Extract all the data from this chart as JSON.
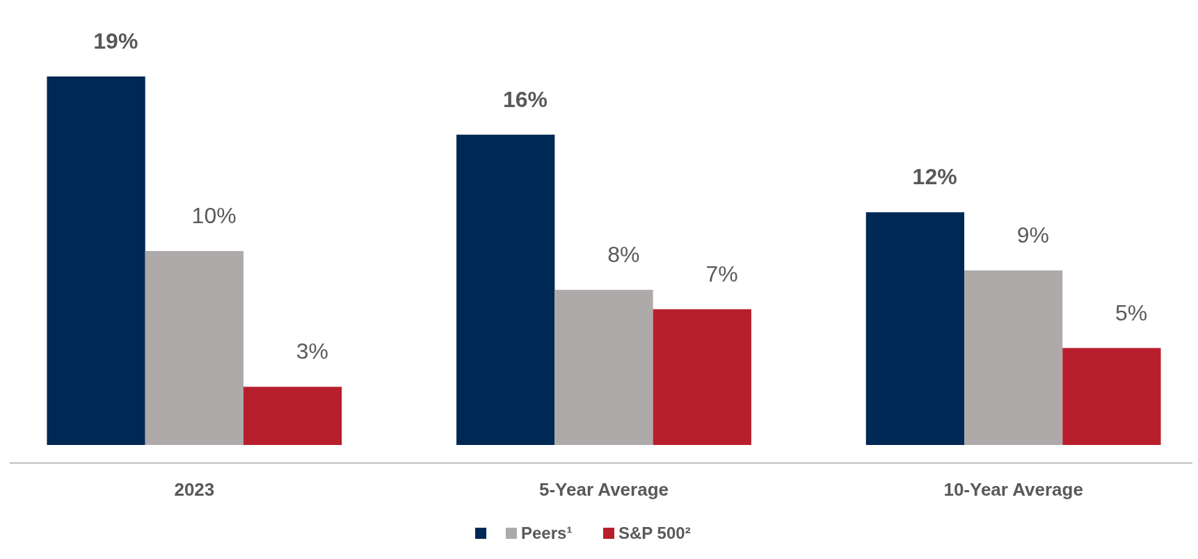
{
  "chart_data": {
    "type": "bar",
    "categories": [
      "2023",
      "5-Year Average",
      "10-Year Average"
    ],
    "series": [
      {
        "color": "#002855",
        "values": [
          19,
          16,
          12
        ],
        "value_labels": [
          "19%",
          "16%",
          "12%"
        ]
      },
      {
        "name": "Peers¹",
        "color": "#aeaaaa",
        "values": [
          10,
          8,
          9
        ],
        "value_labels": [
          "10%",
          "8%",
          "9%"
        ]
      },
      {
        "name": "S&P 500²",
        "color": "#b81f2d",
        "values": [
          3,
          7,
          5
        ],
        "value_labels": [
          "3%",
          "7%",
          "5%"
        ]
      }
    ],
    "legend": "bottom"
  }
}
